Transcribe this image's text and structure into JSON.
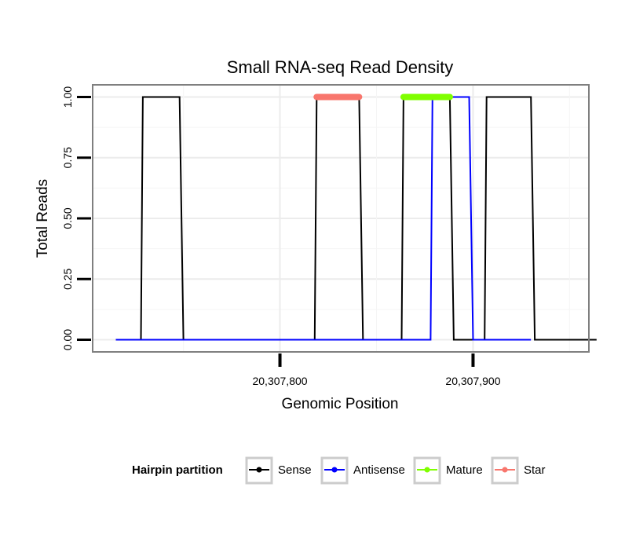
{
  "chart_data": {
    "type": "line",
    "title": "Small RNA-seq Read Density",
    "xlabel": "Genomic Position",
    "ylabel": "Total Reads",
    "xlim": [
      20307703,
      20307960
    ],
    "ylim": [
      -0.05,
      1.05
    ],
    "x_ticks": [
      20307800,
      20307900
    ],
    "x_tick_labels": [
      "20,307,800",
      "20,307,900"
    ],
    "y_ticks": [
      0,
      0.25,
      0.5,
      0.75,
      1.0
    ],
    "y_tick_labels": [
      "0.00",
      "0.25",
      "0.50",
      "0.75",
      "1.00"
    ],
    "grid": true,
    "legend": {
      "title": "Hairpin partition",
      "position": "bottom",
      "entries": [
        {
          "name": "Sense",
          "color": "#000000"
        },
        {
          "name": "Antisense",
          "color": "#0000ff"
        },
        {
          "name": "Mature",
          "color": "#7fff00"
        },
        {
          "name": "Star",
          "color": "#f8766d"
        }
      ]
    },
    "series": [
      {
        "name": "Sense",
        "color": "#000000",
        "x": [
          20307715,
          20307728,
          20307729,
          20307748,
          20307750,
          20307818,
          20307819,
          20307841,
          20307843,
          20307863,
          20307864,
          20307888,
          20307890,
          20307906,
          20307907,
          20307930,
          20307932,
          20307964
        ],
        "y": [
          0,
          0,
          1,
          1,
          0,
          0,
          1,
          1,
          0,
          0,
          1,
          1,
          0,
          0,
          1,
          1,
          0,
          0
        ]
      },
      {
        "name": "Antisense",
        "color": "#0000ff",
        "x": [
          20307715,
          20307878,
          20307879,
          20307898,
          20307900,
          20307930
        ],
        "y": [
          0,
          0,
          1,
          1,
          0,
          0
        ]
      },
      {
        "name": "Mature",
        "color": "#7fff00",
        "segment": [
          20307864,
          20307888
        ],
        "y": 1
      },
      {
        "name": "Star",
        "color": "#f8766d",
        "segment": [
          20307819,
          20307841
        ],
        "y": 1
      }
    ]
  }
}
